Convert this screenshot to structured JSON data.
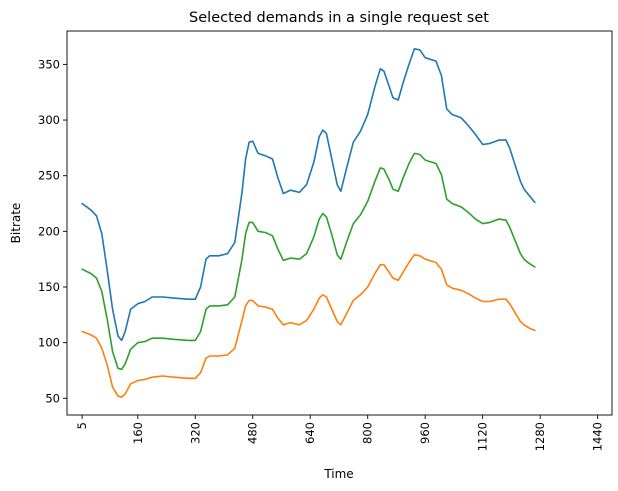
{
  "chart_data": {
    "type": "line",
    "title": "Selected demands in a single request set",
    "xlabel": "Time",
    "ylabel": "Bitrate",
    "xlim": [
      -37,
      1480
    ],
    "ylim": [
      35,
      380
    ],
    "x_ticks": [
      5,
      160,
      320,
      480,
      640,
      800,
      960,
      1120,
      1280,
      1440
    ],
    "x_tick_labels": [
      "5",
      "160",
      "320",
      "480",
      "640",
      "800",
      "960",
      "1120",
      "1280",
      "1440"
    ],
    "x_tick_rotation": 90,
    "y_ticks": [
      50,
      100,
      150,
      200,
      250,
      300,
      350
    ],
    "y_tick_labels": [
      "50",
      "100",
      "150",
      "200",
      "250",
      "300",
      "350"
    ],
    "grid": false,
    "legend": "none",
    "series": [
      {
        "color": "#1f77b4",
        "points": [
          [
            5,
            225
          ],
          [
            30,
            219
          ],
          [
            45,
            214
          ],
          [
            60,
            198
          ],
          [
            75,
            165
          ],
          [
            90,
            130
          ],
          [
            105,
            106
          ],
          [
            115,
            102
          ],
          [
            125,
            110
          ],
          [
            140,
            130
          ],
          [
            160,
            135
          ],
          [
            180,
            137
          ],
          [
            200,
            141
          ],
          [
            230,
            141
          ],
          [
            260,
            140
          ],
          [
            300,
            139
          ],
          [
            320,
            139
          ],
          [
            335,
            150
          ],
          [
            350,
            175
          ],
          [
            360,
            178
          ],
          [
            385,
            178
          ],
          [
            410,
            180
          ],
          [
            430,
            190
          ],
          [
            450,
            235
          ],
          [
            460,
            265
          ],
          [
            470,
            280
          ],
          [
            480,
            281
          ],
          [
            495,
            270
          ],
          [
            515,
            268
          ],
          [
            535,
            265
          ],
          [
            550,
            248
          ],
          [
            565,
            234
          ],
          [
            585,
            237
          ],
          [
            610,
            235
          ],
          [
            630,
            242
          ],
          [
            650,
            262
          ],
          [
            665,
            285
          ],
          [
            675,
            291
          ],
          [
            685,
            288
          ],
          [
            700,
            265
          ],
          [
            715,
            242
          ],
          [
            725,
            236
          ],
          [
            740,
            255
          ],
          [
            760,
            280
          ],
          [
            780,
            290
          ],
          [
            800,
            305
          ],
          [
            820,
            330
          ],
          [
            835,
            346
          ],
          [
            845,
            344
          ],
          [
            860,
            330
          ],
          [
            870,
            320
          ],
          [
            885,
            318
          ],
          [
            900,
            335
          ],
          [
            915,
            350
          ],
          [
            930,
            364
          ],
          [
            945,
            363
          ],
          [
            960,
            356
          ],
          [
            990,
            353
          ],
          [
            1005,
            340
          ],
          [
            1020,
            310
          ],
          [
            1035,
            305
          ],
          [
            1060,
            302
          ],
          [
            1080,
            295
          ],
          [
            1100,
            287
          ],
          [
            1120,
            278
          ],
          [
            1140,
            279
          ],
          [
            1165,
            282
          ],
          [
            1185,
            282
          ],
          [
            1195,
            275
          ],
          [
            1210,
            260
          ],
          [
            1225,
            245
          ],
          [
            1235,
            238
          ],
          [
            1250,
            232
          ],
          [
            1265,
            226
          ]
        ]
      },
      {
        "color": "#ff7f0e",
        "points": [
          [
            5,
            110
          ],
          [
            30,
            107
          ],
          [
            45,
            104
          ],
          [
            60,
            95
          ],
          [
            75,
            80
          ],
          [
            90,
            60
          ],
          [
            105,
            52
          ],
          [
            115,
            51
          ],
          [
            125,
            54
          ],
          [
            140,
            63
          ],
          [
            160,
            66
          ],
          [
            180,
            67
          ],
          [
            200,
            69
          ],
          [
            230,
            70
          ],
          [
            260,
            69
          ],
          [
            300,
            68
          ],
          [
            320,
            68
          ],
          [
            335,
            73
          ],
          [
            350,
            86
          ],
          [
            360,
            88
          ],
          [
            385,
            88
          ],
          [
            410,
            89
          ],
          [
            430,
            95
          ],
          [
            450,
            120
          ],
          [
            460,
            133
          ],
          [
            470,
            138
          ],
          [
            480,
            138
          ],
          [
            495,
            133
          ],
          [
            515,
            132
          ],
          [
            535,
            130
          ],
          [
            550,
            122
          ],
          [
            565,
            116
          ],
          [
            585,
            118
          ],
          [
            610,
            116
          ],
          [
            630,
            120
          ],
          [
            650,
            130
          ],
          [
            665,
            140
          ],
          [
            675,
            143
          ],
          [
            685,
            141
          ],
          [
            700,
            130
          ],
          [
            715,
            119
          ],
          [
            725,
            116
          ],
          [
            740,
            125
          ],
          [
            760,
            138
          ],
          [
            780,
            143
          ],
          [
            800,
            150
          ],
          [
            820,
            162
          ],
          [
            835,
            170
          ],
          [
            845,
            170
          ],
          [
            860,
            163
          ],
          [
            870,
            158
          ],
          [
            885,
            156
          ],
          [
            900,
            164
          ],
          [
            915,
            172
          ],
          [
            930,
            179
          ],
          [
            945,
            178
          ],
          [
            960,
            175
          ],
          [
            990,
            172
          ],
          [
            1005,
            166
          ],
          [
            1020,
            152
          ],
          [
            1035,
            149
          ],
          [
            1060,
            147
          ],
          [
            1080,
            144
          ],
          [
            1100,
            140
          ],
          [
            1120,
            137
          ],
          [
            1140,
            137
          ],
          [
            1165,
            139
          ],
          [
            1185,
            139
          ],
          [
            1195,
            135
          ],
          [
            1210,
            127
          ],
          [
            1225,
            119
          ],
          [
            1235,
            116
          ],
          [
            1250,
            113
          ],
          [
            1265,
            111
          ]
        ]
      },
      {
        "color": "#2ca02c",
        "points": [
          [
            5,
            166
          ],
          [
            30,
            162
          ],
          [
            45,
            158
          ],
          [
            60,
            146
          ],
          [
            75,
            121
          ],
          [
            90,
            92
          ],
          [
            105,
            77
          ],
          [
            115,
            76
          ],
          [
            125,
            81
          ],
          [
            140,
            94
          ],
          [
            160,
            100
          ],
          [
            180,
            101
          ],
          [
            200,
            104
          ],
          [
            230,
            104
          ],
          [
            260,
            103
          ],
          [
            300,
            102
          ],
          [
            320,
            102
          ],
          [
            335,
            110
          ],
          [
            350,
            130
          ],
          [
            360,
            133
          ],
          [
            385,
            133
          ],
          [
            410,
            134
          ],
          [
            430,
            141
          ],
          [
            450,
            175
          ],
          [
            460,
            198
          ],
          [
            470,
            208
          ],
          [
            480,
            208
          ],
          [
            495,
            200
          ],
          [
            515,
            199
          ],
          [
            535,
            196
          ],
          [
            550,
            184
          ],
          [
            565,
            174
          ],
          [
            585,
            176
          ],
          [
            610,
            175
          ],
          [
            630,
            180
          ],
          [
            650,
            195
          ],
          [
            665,
            211
          ],
          [
            675,
            216
          ],
          [
            685,
            213
          ],
          [
            700,
            197
          ],
          [
            715,
            179
          ],
          [
            725,
            175
          ],
          [
            740,
            189
          ],
          [
            760,
            207
          ],
          [
            780,
            215
          ],
          [
            800,
            227
          ],
          [
            820,
            245
          ],
          [
            835,
            257
          ],
          [
            845,
            256
          ],
          [
            860,
            246
          ],
          [
            870,
            238
          ],
          [
            885,
            236
          ],
          [
            900,
            249
          ],
          [
            915,
            261
          ],
          [
            930,
            270
          ],
          [
            945,
            269
          ],
          [
            960,
            264
          ],
          [
            990,
            261
          ],
          [
            1005,
            251
          ],
          [
            1020,
            229
          ],
          [
            1035,
            225
          ],
          [
            1060,
            222
          ],
          [
            1080,
            217
          ],
          [
            1100,
            211
          ],
          [
            1120,
            207
          ],
          [
            1140,
            208
          ],
          [
            1165,
            211
          ],
          [
            1185,
            210
          ],
          [
            1195,
            204
          ],
          [
            1210,
            192
          ],
          [
            1225,
            180
          ],
          [
            1235,
            175
          ],
          [
            1250,
            171
          ],
          [
            1265,
            168
          ]
        ]
      }
    ]
  }
}
